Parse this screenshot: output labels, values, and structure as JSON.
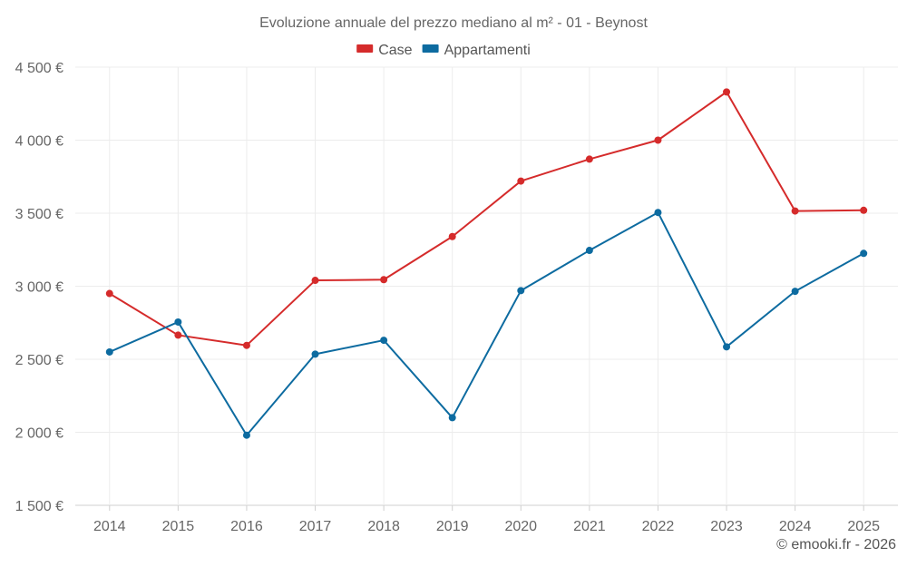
{
  "chart_data": {
    "type": "line",
    "title": "Evoluzione annuale del prezzo mediano al m² - 01 - Beynost",
    "categories": [
      "2014",
      "2015",
      "2016",
      "2017",
      "2018",
      "2019",
      "2020",
      "2021",
      "2022",
      "2023",
      "2024",
      "2025"
    ],
    "series": [
      {
        "name": "Case",
        "color": "#d52b2b",
        "values": [
          2950,
          2665,
          2595,
          3040,
          3045,
          3340,
          3720,
          3870,
          4000,
          4330,
          3515,
          3520
        ]
      },
      {
        "name": "Appartamenti",
        "color": "#0d6ba0",
        "values": [
          2550,
          2755,
          1980,
          2535,
          2630,
          2100,
          2970,
          3245,
          3505,
          2585,
          2965,
          3225
        ]
      }
    ],
    "ylim": [
      1500,
      4500
    ],
    "yticks": [
      1500,
      2000,
      2500,
      3000,
      3500,
      4000,
      4500
    ],
    "ytick_labels": [
      "1 500 €",
      "2 000 €",
      "2 500 €",
      "3 000 €",
      "3 500 €",
      "4 000 €",
      "4 500 €"
    ],
    "xlabel": "",
    "ylabel": "",
    "grid": true,
    "legend_position": "top-center"
  },
  "credit": "© emooki.fr - 2026"
}
